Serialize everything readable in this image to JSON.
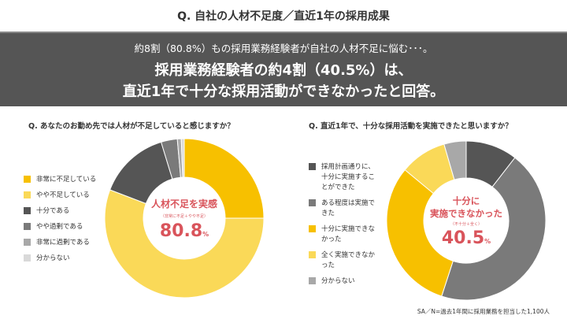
{
  "title": "Q. 自社の人材不足度／直近1年の採用成果",
  "banner": {
    "line1": "約8割（80.8%）もの採用業務経験者が自社の人材不足に悩む･･･。",
    "line2": "採用業務経験者の約4割（40.5%）は、",
    "line3": "直近1年で十分な採用活動ができなかったと回答。"
  },
  "chart_data": [
    {
      "type": "pie",
      "title": "Q. あなたのお勤め先では人材が不足していると感じますか？",
      "categories": [
        "非常に不足している",
        "やや不足している",
        "十分である",
        "やや過剰である",
        "非常に過剰である",
        "分からない"
      ],
      "values": [
        25.0,
        55.8,
        14.5,
        3.3,
        0.8,
        0.6
      ],
      "colors": [
        "#f7c000",
        "#fad958",
        "#555555",
        "#7a7a7a",
        "#a8a8a8",
        "#d9d9d9"
      ],
      "center": {
        "label": "人材不足を実感",
        "sub": "（非常に不足＋やや不足）",
        "value": "80.8",
        "unit": "%"
      }
    },
    {
      "type": "pie",
      "title": "Q. 直近1年で、十分な採用活動を実施できたと思いますか？",
      "categories": [
        "採用計画通りに、十分に実施することができた",
        "ある程度は実施できた",
        "十分に実施できなかった",
        "全く実施できなかった",
        "分からない"
      ],
      "values": [
        10.5,
        44.5,
        31.0,
        9.5,
        4.5
      ],
      "colors": [
        "#555555",
        "#7a7a7a",
        "#f7c000",
        "#fad958",
        "#a8a8a8"
      ],
      "center": {
        "label1": "十分に",
        "label2": "実施できなかった",
        "sub": "（不十分＋全く）",
        "value": "40.5",
        "unit": "%"
      }
    }
  ],
  "note": "SA／N=過去1年間に採用業務を担当した1,100人"
}
